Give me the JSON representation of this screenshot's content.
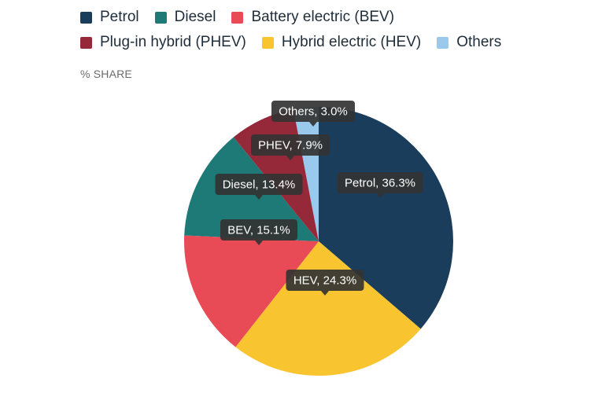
{
  "legend": [
    {
      "label": "Petrol",
      "color": "#1b3d5c"
    },
    {
      "label": "Diesel",
      "color": "#1e7a76"
    },
    {
      "label": "Battery electric (BEV)",
      "color": "#e84a56"
    },
    {
      "label": "Plug-in hybrid (PHEV)",
      "color": "#952839"
    },
    {
      "label": "Hybrid electric (HEV)",
      "color": "#f8c42f"
    },
    {
      "label": "Others",
      "color": "#99c9ec"
    }
  ],
  "unit_label": "% SHARE",
  "chart_data": {
    "type": "pie",
    "unit": "%",
    "slices": [
      {
        "key": "Petrol",
        "label": "Petrol, 36.3%",
        "value": 36.3,
        "color": "#1b3d5c"
      },
      {
        "key": "HEV",
        "label": "HEV, 24.3%",
        "value": 24.3,
        "color": "#f8c42f"
      },
      {
        "key": "BEV",
        "label": "BEV, 15.1%",
        "value": 15.1,
        "color": "#e84a56"
      },
      {
        "key": "Diesel",
        "label": "Diesel, 13.4%",
        "value": 13.4,
        "color": "#1e7a76"
      },
      {
        "key": "PHEV",
        "label": "PHEV, 7.9%",
        "value": 7.9,
        "color": "#952839"
      },
      {
        "key": "Others",
        "label": "Others, 3.0%",
        "value": 3.0,
        "color": "#99c9ec"
      }
    ],
    "legend_position": "top-left"
  }
}
